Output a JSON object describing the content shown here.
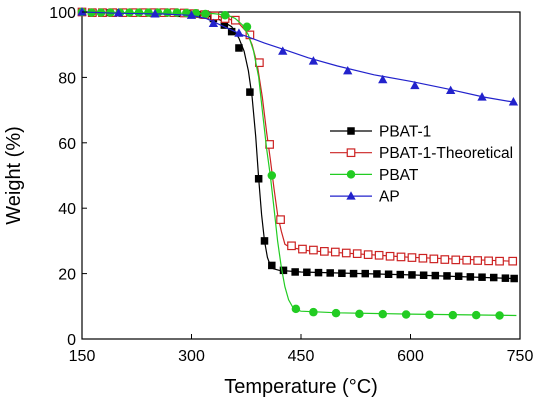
{
  "chart_data": {
    "type": "line",
    "xlabel": "Temperature (°C)",
    "ylabel": "Weight (%)",
    "xlim": [
      150,
      750
    ],
    "ylim": [
      0,
      100
    ],
    "xticks": [
      150,
      300,
      450,
      600,
      750
    ],
    "yticks": [
      0,
      20,
      40,
      60,
      80,
      100
    ],
    "grid": false,
    "legend_position": "center-right",
    "series": [
      {
        "name": "PBAT-1",
        "color": "#000000",
        "marker": "square-filled",
        "line": [
          [
            150,
            100
          ],
          [
            300,
            99.6
          ],
          [
            320,
            99
          ],
          [
            340,
            97.5
          ],
          [
            355,
            95.5
          ],
          [
            365,
            92
          ],
          [
            372,
            88
          ],
          [
            378,
            82
          ],
          [
            383,
            74
          ],
          [
            388,
            62
          ],
          [
            392,
            49
          ],
          [
            396,
            38
          ],
          [
            400,
            30
          ],
          [
            404,
            25
          ],
          [
            408,
            22.5
          ],
          [
            412,
            21.5
          ],
          [
            420,
            21
          ],
          [
            450,
            20.5
          ],
          [
            600,
            19.6
          ],
          [
            740,
            18.5
          ]
        ],
        "points": [
          [
            150,
            100
          ],
          [
            165,
            99.8
          ],
          [
            180,
            99.8
          ],
          [
            195,
            99.8
          ],
          [
            210,
            99.8
          ],
          [
            225,
            99.8
          ],
          [
            240,
            99.8
          ],
          [
            255,
            99.8
          ],
          [
            270,
            99.8
          ],
          [
            285,
            99.6
          ],
          [
            300,
            99.6
          ],
          [
            315,
            99.2
          ],
          [
            330,
            98
          ],
          [
            345,
            96
          ],
          [
            355,
            94
          ],
          [
            365,
            89
          ],
          [
            380,
            75.5
          ],
          [
            392,
            49
          ],
          [
            400,
            30
          ],
          [
            410,
            22.5
          ],
          [
            426,
            21
          ],
          [
            442,
            20.5
          ],
          [
            458,
            20.4
          ],
          [
            474,
            20.3
          ],
          [
            490,
            20.2
          ],
          [
            506,
            20.1
          ],
          [
            522,
            20
          ],
          [
            538,
            20
          ],
          [
            554,
            19.9
          ],
          [
            570,
            19.8
          ],
          [
            586,
            19.7
          ],
          [
            602,
            19.6
          ],
          [
            618,
            19.5
          ],
          [
            634,
            19.4
          ],
          [
            650,
            19.3
          ],
          [
            666,
            19.2
          ],
          [
            682,
            19
          ],
          [
            698,
            18.9
          ],
          [
            714,
            18.8
          ],
          [
            730,
            18.6
          ],
          [
            742,
            18.5
          ]
        ]
      },
      {
        "name": "PBAT-1-Theoretical",
        "color": "#cc2222",
        "marker": "square-open",
        "line": [
          [
            150,
            100
          ],
          [
            300,
            99.7
          ],
          [
            330,
            99
          ],
          [
            350,
            98
          ],
          [
            365,
            96.5
          ],
          [
            375,
            94
          ],
          [
            383,
            90
          ],
          [
            390,
            84
          ],
          [
            397,
            74
          ],
          [
            403,
            63
          ],
          [
            408,
            55
          ],
          [
            413,
            46
          ],
          [
            418,
            38
          ],
          [
            423,
            33
          ],
          [
            428,
            29
          ],
          [
            435,
            28
          ],
          [
            460,
            27
          ],
          [
            600,
            25
          ],
          [
            740,
            23.8
          ]
        ],
        "points": [
          [
            150,
            100
          ],
          [
            164,
            99.8
          ],
          [
            178,
            99.8
          ],
          [
            192,
            99.8
          ],
          [
            206,
            99.8
          ],
          [
            220,
            99.8
          ],
          [
            234,
            99.8
          ],
          [
            248,
            99.8
          ],
          [
            262,
            99.8
          ],
          [
            276,
            99.8
          ],
          [
            290,
            99.7
          ],
          [
            304,
            99.5
          ],
          [
            318,
            99.2
          ],
          [
            332,
            98.8
          ],
          [
            346,
            98
          ],
          [
            360,
            97.5
          ],
          [
            380,
            93
          ],
          [
            393,
            84.5
          ],
          [
            407,
            59.5
          ],
          [
            422,
            36.5
          ],
          [
            437,
            28.5
          ],
          [
            452,
            27.5
          ],
          [
            467,
            27.2
          ],
          [
            482,
            26.8
          ],
          [
            497,
            26.6
          ],
          [
            512,
            26.3
          ],
          [
            527,
            26.1
          ],
          [
            542,
            25.8
          ],
          [
            557,
            25.6
          ],
          [
            572,
            25.3
          ],
          [
            587,
            25.1
          ],
          [
            602,
            24.9
          ],
          [
            617,
            24.7
          ],
          [
            632,
            24.5
          ],
          [
            647,
            24.3
          ],
          [
            662,
            24.2
          ],
          [
            677,
            24.1
          ],
          [
            692,
            24
          ],
          [
            707,
            23.9
          ],
          [
            722,
            23.8
          ],
          [
            740,
            23.8
          ]
        ]
      },
      {
        "name": "PBAT",
        "color": "#22cc22",
        "marker": "circle-filled",
        "line": [
          [
            150,
            100
          ],
          [
            330,
            99.5
          ],
          [
            350,
            99
          ],
          [
            360,
            98
          ],
          [
            370,
            96
          ],
          [
            378,
            93
          ],
          [
            385,
            88
          ],
          [
            392,
            80
          ],
          [
            398,
            68
          ],
          [
            403,
            58
          ],
          [
            408,
            50
          ],
          [
            413,
            40
          ],
          [
            418,
            30
          ],
          [
            423,
            22
          ],
          [
            428,
            16
          ],
          [
            433,
            12
          ],
          [
            440,
            9.2
          ],
          [
            450,
            8.5
          ],
          [
            500,
            8
          ],
          [
            600,
            7.6
          ],
          [
            745,
            7.2
          ]
        ],
        "points": [
          [
            150,
            100
          ],
          [
            163,
            99.8
          ],
          [
            176,
            99.8
          ],
          [
            189,
            99.8
          ],
          [
            202,
            99.8
          ],
          [
            215,
            99.8
          ],
          [
            228,
            99.8
          ],
          [
            241,
            99.8
          ],
          [
            254,
            99.8
          ],
          [
            267,
            99.8
          ],
          [
            280,
            99.8
          ],
          [
            293,
            99.7
          ],
          [
            306,
            99.6
          ],
          [
            319,
            99.4
          ],
          [
            346,
            99
          ],
          [
            376,
            95.5
          ],
          [
            410,
            50
          ],
          [
            443,
            9.2
          ],
          [
            467,
            8.2
          ],
          [
            498,
            7.9
          ],
          [
            530,
            7.7
          ],
          [
            562,
            7.6
          ],
          [
            594,
            7.5
          ],
          [
            626,
            7.4
          ],
          [
            658,
            7.3
          ],
          [
            690,
            7.3
          ],
          [
            722,
            7.2
          ]
        ]
      },
      {
        "name": "AP",
        "color": "#2222cc",
        "marker": "triangle-filled",
        "line": [
          [
            150,
            100
          ],
          [
            200,
            99.6
          ],
          [
            260,
            99.4
          ],
          [
            300,
            99
          ],
          [
            320,
            98
          ],
          [
            335,
            96.5
          ],
          [
            350,
            95
          ],
          [
            370,
            93
          ],
          [
            400,
            90.5
          ],
          [
            430,
            88.3
          ],
          [
            460,
            86
          ],
          [
            500,
            83.5
          ],
          [
            550,
            80.8
          ],
          [
            600,
            78.8
          ],
          [
            650,
            76.5
          ],
          [
            700,
            74
          ],
          [
            745,
            72.3
          ]
        ],
        "points": [
          [
            150,
            100
          ],
          [
            200,
            99.7
          ],
          [
            250,
            99.4
          ],
          [
            300,
            99
          ],
          [
            330,
            96.5
          ],
          [
            365,
            93.5
          ],
          [
            425,
            88
          ],
          [
            467,
            85
          ],
          [
            514,
            82
          ],
          [
            562,
            79.3
          ],
          [
            606,
            77.5
          ],
          [
            655,
            76
          ],
          [
            698,
            74
          ],
          [
            741,
            72.5
          ]
        ]
      }
    ]
  }
}
